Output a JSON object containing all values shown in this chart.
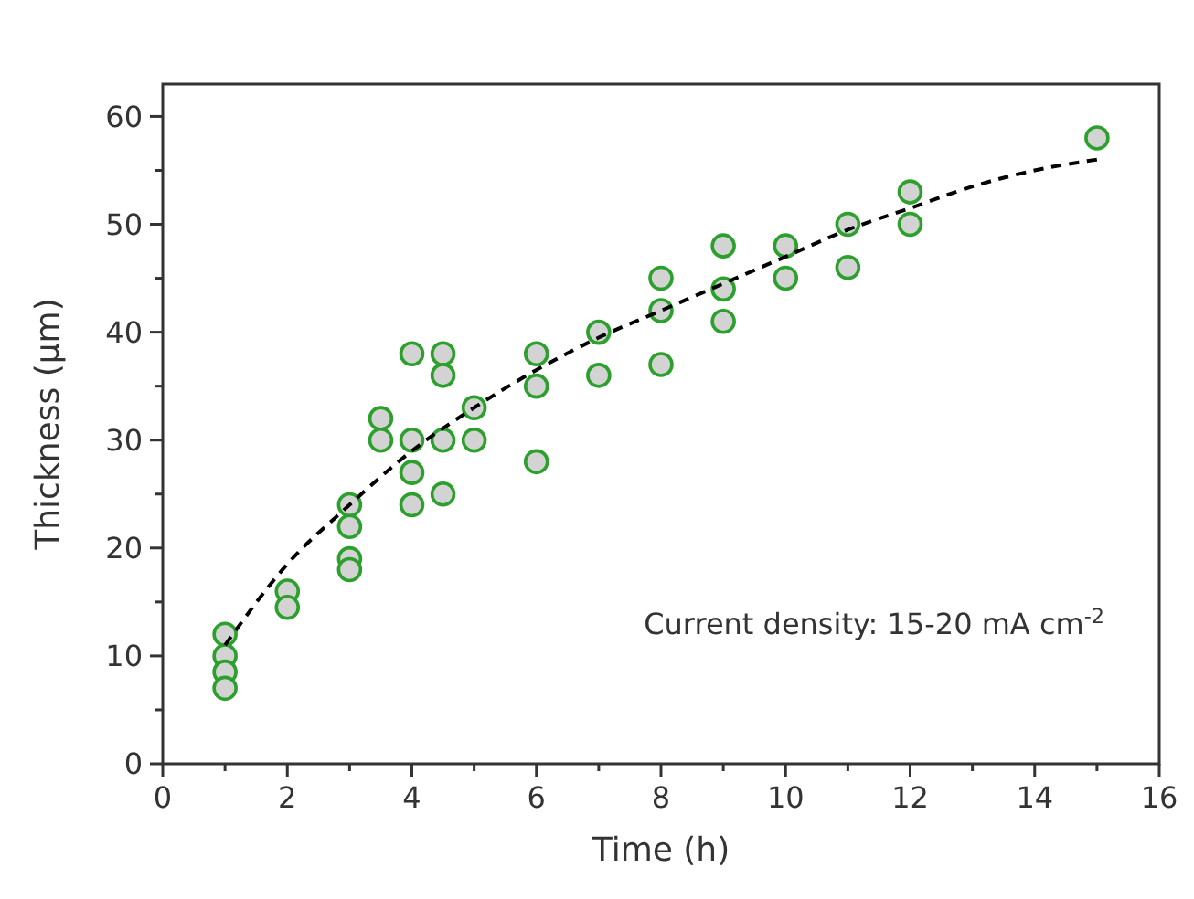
{
  "chart_data": {
    "type": "scatter",
    "xlabel": "Time (h)",
    "ylabel": "Thickness (µm)",
    "xlim": [
      0,
      16
    ],
    "ylim": [
      0,
      63
    ],
    "xticks": [
      0,
      {
        "value": 1,
        "label": null
      },
      2,
      {
        "value": 3,
        "label": null
      },
      4,
      {
        "value": 5,
        "label": null
      },
      6,
      {
        "value": 7,
        "label": null
      },
      8,
      {
        "value": 9,
        "label": null
      },
      10,
      {
        "value": 11,
        "label": null
      },
      12,
      {
        "value": 13,
        "label": null
      },
      14,
      {
        "value": 15,
        "label": null
      },
      16
    ],
    "yticks": [
      0,
      {
        "value": 5,
        "label": null
      },
      10,
      {
        "value": 15,
        "label": null
      },
      20,
      {
        "value": 25,
        "label": null
      },
      30,
      {
        "value": 35,
        "label": null
      },
      40,
      {
        "value": 45,
        "label": null
      },
      50,
      {
        "value": 55,
        "label": null
      },
      60
    ],
    "grid": false,
    "marker": "circle",
    "annotations": [
      "Current density: 15-20 mA cm$^{-2}$"
    ],
    "series": [
      {
        "color": "#2ca02c",
        "x": [
          1,
          1,
          1,
          1,
          2,
          2,
          3,
          3,
          3,
          3,
          3.5,
          3.5,
          4,
          4,
          4,
          4,
          4.5,
          4.5,
          4.5,
          4.5,
          5,
          5,
          6,
          6,
          6,
          7,
          7,
          8,
          8,
          8,
          9,
          9,
          9,
          10,
          10,
          11,
          11,
          12,
          12,
          15
        ],
        "values": [
          12,
          10,
          8.5,
          7,
          16,
          14.5,
          24,
          22,
          19,
          18,
          32,
          30,
          38,
          30,
          27,
          24,
          38,
          36,
          30,
          25,
          33,
          30,
          38,
          35,
          28,
          40,
          36,
          45,
          42,
          37,
          48,
          44,
          41,
          48,
          45,
          50,
          46,
          53,
          50,
          58
        ]
      },
      {
        "type": "line",
        "color": "#000000",
        "line_style": "dashed",
        "marker": "none",
        "x": [
          1,
          2,
          3,
          4,
          5,
          6,
          7,
          8,
          9,
          10,
          11,
          12,
          13,
          14,
          15
        ],
        "values": [
          11,
          18.5,
          24,
          29,
          33,
          36.5,
          39.5,
          42,
          44.5,
          47,
          49.5,
          51.5,
          53.5,
          55,
          56
        ]
      }
    ]
  }
}
